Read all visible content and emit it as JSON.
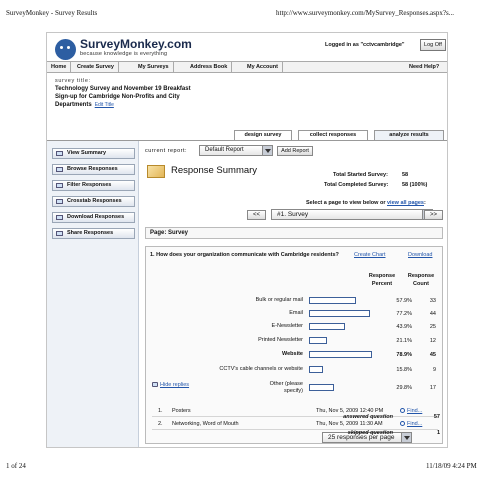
{
  "print_header": {
    "title": "SurveyMonkey - Survey Results",
    "url": "http://www.surveymonkey.com/MySurvey_Responses.aspx?s..."
  },
  "print_footer": {
    "page": "1 of 24",
    "datetime": "11/18/09 4:24 PM"
  },
  "brand": {
    "name": "SurveyMonkey.com",
    "tagline": "because knowledge is everything",
    "icon": "monkey-logo-icon",
    "color": "#2d5ea2"
  },
  "account": {
    "logged_in_text": "Logged in as \"cctvcambridge\"",
    "logoff_label": "Log Off"
  },
  "nav": {
    "items": [
      "Home",
      "Create Survey",
      "My Surveys",
      "Address Book",
      "My Account"
    ],
    "help": "Need Help?"
  },
  "survey": {
    "label": "survey title:",
    "title_lines": [
      "Technology Survey and November 19 Breakfast",
      "Sign-up for Cambridge Non-Profits and City",
      "Departments"
    ],
    "edit_title": "Edit Title"
  },
  "tabs": [
    "design survey",
    "collect responses",
    "analyze results"
  ],
  "sidebar": {
    "items": [
      "View Summary",
      "Browse Responses",
      "Filter Responses",
      "Crosstab Responses",
      "Download Responses",
      "Share Responses"
    ]
  },
  "report": {
    "label": "current report:",
    "selected": "Default Report",
    "add_label": "Add Report"
  },
  "summary": {
    "title": "Response Summary",
    "total_started_label": "Total Started Survey:",
    "total_started_value": "58",
    "total_completed_label": "Total Completed Survey:",
    "total_completed_value": "58  (100%)"
  },
  "page_nav": {
    "prompt": "Select a page to view below or",
    "view_all": "view all pages",
    "prompt_end": ":",
    "prev": "<<",
    "selected": "#1. Survey",
    "next": ">>"
  },
  "page_label": "Page: Survey",
  "question": {
    "text": "1. How does your organization communicate with Cambridge residents?",
    "create_chart": "Create Chart",
    "download": "Download",
    "col_percent": "Response Percent",
    "col_count": "Response Count",
    "answers": [
      {
        "label": "Bulk or regular mail",
        "percent": "57.9%",
        "count": "33",
        "value": 57.9
      },
      {
        "label": "Email",
        "percent": "77.2%",
        "count": "44",
        "value": 77.2
      },
      {
        "label": "E-Newsletter",
        "percent": "43.9%",
        "count": "25",
        "value": 43.9
      },
      {
        "label": "Printed Newsletter",
        "percent": "21.1%",
        "count": "12",
        "value": 21.1
      },
      {
        "label": "Website",
        "percent": "78.9%",
        "count": "45",
        "value": 78.9
      },
      {
        "label": "CCTV's cable channels or website",
        "percent": "15.8%",
        "count": "9",
        "value": 15.8
      }
    ],
    "other": {
      "label_1": "Other (please",
      "label_2": "specify)",
      "percent": "29.8%",
      "count": "17",
      "value": 29.8
    },
    "hide_replies": "Hide replies",
    "replies": [
      {
        "num": "1.",
        "text": "Posters",
        "date": "Thu, Nov 5, 2009 12:40 PM",
        "find": "Find..."
      },
      {
        "num": "2.",
        "text": "Networking, Word of Mouth",
        "date": "Thu, Nov 5, 2009 11:30 AM",
        "find": "Find..."
      }
    ],
    "responses_per_page": "25 responses per page",
    "answered_label": "answered question",
    "answered_value": "57",
    "skipped_label": "skipped question",
    "skipped_value": "1"
  }
}
